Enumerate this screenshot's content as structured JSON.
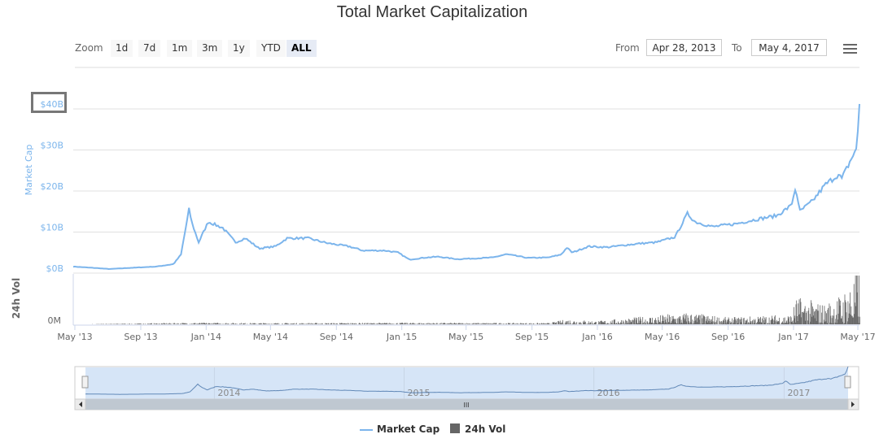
{
  "title": "Total Market Capitalization",
  "toolbar": {
    "zoom_label": "Zoom",
    "buttons": [
      "1d",
      "7d",
      "1m",
      "3m",
      "1y",
      "YTD",
      "ALL"
    ],
    "selected": "ALL",
    "from_label": "From",
    "from_value": "Apr 28, 2013",
    "to_label": "To",
    "to_value": "May 4, 2017"
  },
  "colors": {
    "market_cap": "#7cb5ec",
    "volume": "#666666",
    "navigator_fill": "#d6e5f7"
  },
  "chart_data": {
    "type": "line",
    "title": "Total Market Capitalization",
    "y_axis": {
      "label": "Market Cap",
      "ticks": [
        "$0B",
        "$10B",
        "$20B",
        "$30B",
        "$40B"
      ],
      "range": [
        0,
        40
      ]
    },
    "volume_axis": {
      "label": "24h Vol",
      "ticks": [
        "0M"
      ]
    },
    "x_ticks": [
      "May '13",
      "Sep '13",
      "Jan '14",
      "May '14",
      "Sep '14",
      "Jan '15",
      "May '15",
      "Sep '15",
      "Jan '16",
      "May '16",
      "Sep '16",
      "Jan '17",
      "May '17"
    ],
    "x_range": [
      "2013-04-28",
      "2017-05-04"
    ],
    "navigator_labels": [
      "2014",
      "2015",
      "2016",
      "2017"
    ],
    "series": [
      {
        "name": "Market Cap",
        "unit": "$B",
        "points": [
          [
            "2013-04-28",
            1.6
          ],
          [
            "2013-06-01",
            1.3
          ],
          [
            "2013-07-05",
            1.0
          ],
          [
            "2013-08-15",
            1.3
          ],
          [
            "2013-10-01",
            1.6
          ],
          [
            "2013-11-01",
            2.2
          ],
          [
            "2013-11-15",
            4.5
          ],
          [
            "2013-11-30",
            15.5
          ],
          [
            "2013-12-06",
            12
          ],
          [
            "2013-12-18",
            7.5
          ],
          [
            "2014-01-05",
            12.5
          ],
          [
            "2014-02-01",
            11
          ],
          [
            "2014-02-25",
            7.5
          ],
          [
            "2014-03-15",
            8.5
          ],
          [
            "2014-04-10",
            6
          ],
          [
            "2014-05-10",
            6.5
          ],
          [
            "2014-06-01",
            8.5
          ],
          [
            "2014-07-10",
            8.5
          ],
          [
            "2014-08-15",
            7.3
          ],
          [
            "2014-09-25",
            6.5
          ],
          [
            "2014-10-20",
            5.5
          ],
          [
            "2014-12-01",
            5.5
          ],
          [
            "2014-12-25",
            5
          ],
          [
            "2015-01-15",
            3.3
          ],
          [
            "2015-02-15",
            3.8
          ],
          [
            "2015-03-10",
            4
          ],
          [
            "2015-04-15",
            3.4
          ],
          [
            "2015-05-20",
            3.6
          ],
          [
            "2015-06-20",
            3.8
          ],
          [
            "2015-07-15",
            4.6
          ],
          [
            "2015-08-25",
            3.7
          ],
          [
            "2015-10-01",
            3.8
          ],
          [
            "2015-10-25",
            4.5
          ],
          [
            "2015-11-05",
            6.2
          ],
          [
            "2015-11-15",
            5
          ],
          [
            "2015-12-15",
            6.5
          ],
          [
            "2016-01-20",
            6.3
          ],
          [
            "2016-02-20",
            6.8
          ],
          [
            "2016-03-20",
            7.2
          ],
          [
            "2016-04-20",
            7.5
          ],
          [
            "2016-05-25",
            8.8
          ],
          [
            "2016-06-17",
            14.5
          ],
          [
            "2016-07-01",
            12.5
          ],
          [
            "2016-08-03",
            11.3
          ],
          [
            "2016-09-15",
            12
          ],
          [
            "2016-10-20",
            13
          ],
          [
            "2016-12-01",
            14
          ],
          [
            "2016-12-28",
            16.5
          ],
          [
            "2017-01-05",
            21
          ],
          [
            "2017-01-12",
            15
          ],
          [
            "2017-02-05",
            17.5
          ],
          [
            "2017-03-01",
            21.5
          ],
          [
            "2017-03-25",
            24
          ],
          [
            "2017-04-01",
            23
          ],
          [
            "2017-04-25",
            29.5
          ],
          [
            "2017-04-29",
            30
          ],
          [
            "2017-05-04",
            41.5
          ]
        ]
      },
      {
        "name": "24h Vol",
        "unit": "$B",
        "points": [
          [
            "2013-04-28",
            0
          ],
          [
            "2013-12-01",
            0.05
          ],
          [
            "2014-06-01",
            0.04
          ],
          [
            "2015-01-15",
            0.05
          ],
          [
            "2015-10-01",
            0.04
          ],
          [
            "2015-11-05",
            0.15
          ],
          [
            "2016-01-01",
            0.1
          ],
          [
            "2016-06-17",
            0.35
          ],
          [
            "2016-09-01",
            0.2
          ],
          [
            "2016-12-28",
            0.3
          ],
          [
            "2017-01-05",
            0.8
          ],
          [
            "2017-03-01",
            0.6
          ],
          [
            "2017-04-01",
            0.9
          ],
          [
            "2017-05-04",
            1.7
          ]
        ]
      }
    ]
  },
  "legend": [
    {
      "label": "Market Cap"
    },
    {
      "label": "24h Vol"
    }
  ]
}
